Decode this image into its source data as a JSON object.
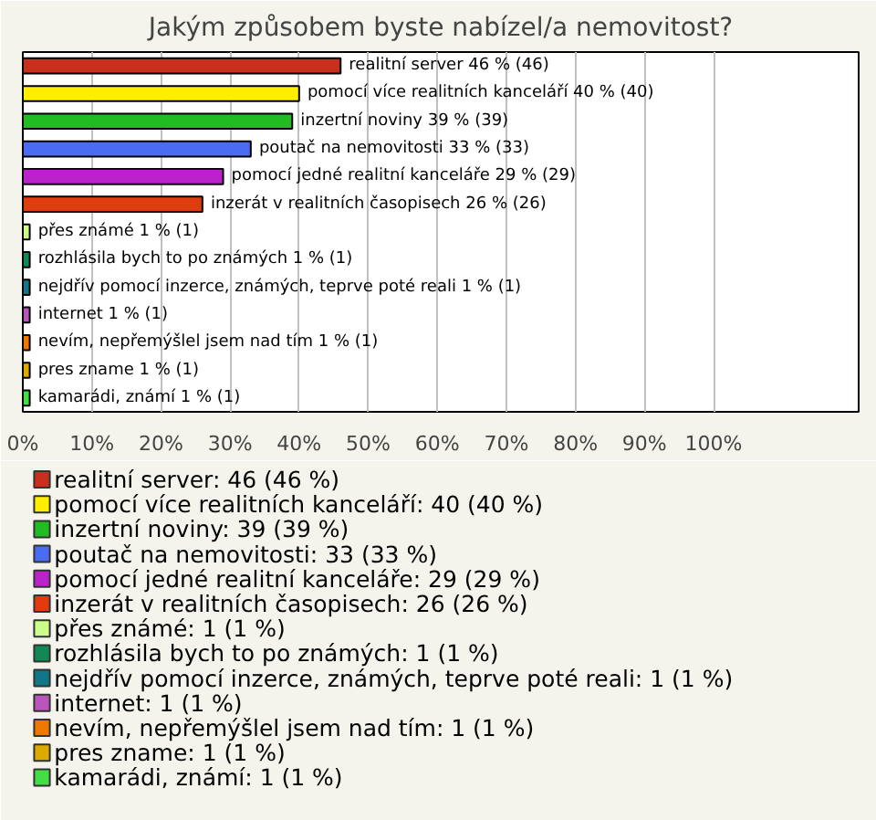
{
  "chart_data": {
    "type": "bar",
    "orientation": "horizontal",
    "stacked": true,
    "title": "Jakým způsobem byste nabízel/a nemovitost?",
    "categories": [
      null,
      null,
      null,
      null,
      null,
      null,
      null,
      null,
      null,
      null,
      null,
      null,
      null
    ],
    "series": [
      {
        "name": "realitní server: 46 (46 %)",
        "color": "#c8301e",
        "values": [
          46,
          null,
          null,
          null,
          null,
          null,
          null,
          null,
          null,
          null,
          null,
          null,
          null
        ],
        "value_labels": [
          "realitní server 46 % (46)",
          null,
          null,
          null,
          null,
          null,
          null,
          null,
          null,
          null,
          null,
          null,
          null
        ]
      },
      {
        "name": "pomocí více realitních kanceláří: 40 (40 %)",
        "color": "#ffee00",
        "values": [
          null,
          40,
          null,
          null,
          null,
          null,
          null,
          null,
          null,
          null,
          null,
          null,
          null
        ],
        "value_labels": [
          null,
          "pomocí více realitních kanceláří 40 % (40)",
          null,
          null,
          null,
          null,
          null,
          null,
          null,
          null,
          null,
          null,
          null
        ]
      },
      {
        "name": "inzertní noviny: 39 (39 %)",
        "color": "#22bb22",
        "values": [
          null,
          null,
          39,
          null,
          null,
          null,
          null,
          null,
          null,
          null,
          null,
          null,
          null
        ],
        "value_labels": [
          null,
          null,
          "inzertní noviny 39 % (39)",
          null,
          null,
          null,
          null,
          null,
          null,
          null,
          null,
          null,
          null
        ]
      },
      {
        "name": "poutač na nemovitosti: 33 (33 %)",
        "color": "#4a6cf0",
        "values": [
          null,
          null,
          null,
          33,
          null,
          null,
          null,
          null,
          null,
          null,
          null,
          null,
          null
        ],
        "value_labels": [
          null,
          null,
          null,
          "poutač na nemovitosti 33 % (33)",
          null,
          null,
          null,
          null,
          null,
          null,
          null,
          null,
          null
        ]
      },
      {
        "name": "pomocí jedné realitní kanceláře: 29 (29 %)",
        "color": "#bb22cc",
        "values": [
          null,
          null,
          null,
          null,
          29,
          null,
          null,
          null,
          null,
          null,
          null,
          null,
          null
        ],
        "value_labels": [
          null,
          null,
          null,
          null,
          "pomocí jedné realitní kanceláře 29 % (29)",
          null,
          null,
          null,
          null,
          null,
          null,
          null,
          null
        ]
      },
      {
        "name": "inzerát v realitních časopisech: 26 (26 %)",
        "color": "#e03c10",
        "values": [
          null,
          null,
          null,
          null,
          null,
          26,
          null,
          null,
          null,
          null,
          null,
          null,
          null
        ],
        "value_labels": [
          null,
          null,
          null,
          null,
          null,
          "inzerát v realitních časopisech 26 % (26)",
          null,
          null,
          null,
          null,
          null,
          null,
          null
        ]
      },
      {
        "name": "přes známé: 1 (1 %)",
        "color": "#ccff88",
        "values": [
          null,
          null,
          null,
          null,
          null,
          null,
          1,
          null,
          null,
          null,
          null,
          null,
          null
        ],
        "value_labels": [
          null,
          null,
          null,
          null,
          null,
          null,
          "přes známé 1 % (1)",
          null,
          null,
          null,
          null,
          null,
          null
        ]
      },
      {
        "name": "rozhlásila bych to po známých: 1 (1 %)",
        "color": "#118855",
        "values": [
          null,
          null,
          null,
          null,
          null,
          null,
          null,
          1,
          null,
          null,
          null,
          null,
          null
        ],
        "value_labels": [
          null,
          null,
          null,
          null,
          null,
          null,
          null,
          "rozhlásila bych to po známých 1 % (1)",
          null,
          null,
          null,
          null,
          null
        ]
      },
      {
        "name": "nejdřív pomocí inzerce, známých, teprve poté reali: 1 (1 %)",
        "color": "#117788",
        "values": [
          null,
          null,
          null,
          null,
          null,
          null,
          null,
          null,
          1,
          null,
          null,
          null,
          null
        ],
        "value_labels": [
          null,
          null,
          null,
          null,
          null,
          null,
          null,
          null,
          "nejdřív pomocí inzerce, známých, teprve poté reali 1 % (1)",
          null,
          null,
          null,
          null
        ]
      },
      {
        "name": "internet: 1 (1 %)",
        "color": "#bb55bb",
        "values": [
          null,
          null,
          null,
          null,
          null,
          null,
          null,
          null,
          null,
          1,
          null,
          null,
          null
        ],
        "value_labels": [
          null,
          null,
          null,
          null,
          null,
          null,
          null,
          null,
          null,
          "internet 1 % (1)",
          null,
          null,
          null
        ]
      },
      {
        "name": "nevím, nepřemýšlel jsem nad tím: 1 (1 %)",
        "color": "#ee7700",
        "values": [
          null,
          null,
          null,
          null,
          null,
          null,
          null,
          null,
          null,
          null,
          1,
          null,
          null
        ],
        "value_labels": [
          null,
          null,
          null,
          null,
          null,
          null,
          null,
          null,
          null,
          null,
          "nevím, nepřemýšlel jsem nad tím 1 % (1)",
          null,
          null
        ]
      },
      {
        "name": "pres zname: 1 (1 %)",
        "color": "#ddaa00",
        "values": [
          null,
          null,
          null,
          null,
          null,
          null,
          null,
          null,
          null,
          null,
          null,
          1,
          null
        ],
        "value_labels": [
          null,
          null,
          null,
          null,
          null,
          null,
          null,
          null,
          null,
          null,
          null,
          "pres zname 1 % (1)",
          null
        ]
      },
      {
        "name": "kamarádi, známí: 1 (1 %)",
        "color": "#44dd44",
        "values": [
          null,
          null,
          null,
          null,
          null,
          null,
          null,
          null,
          null,
          null,
          null,
          null,
          1
        ],
        "value_labels": [
          null,
          null,
          null,
          null,
          null,
          null,
          null,
          null,
          null,
          null,
          null,
          null,
          "kamarádi, známí 1 % (1)"
        ]
      }
    ],
    "xlim": [
      0,
      121
    ],
    "xticks": [
      {
        "value": 0,
        "label": "0%"
      },
      {
        "value": 10,
        "label": "10%"
      },
      {
        "value": 20,
        "label": "20%"
      },
      {
        "value": 30,
        "label": "30%"
      },
      {
        "value": 40,
        "label": "40%"
      },
      {
        "value": 50,
        "label": "50%"
      },
      {
        "value": 60,
        "label": "60%"
      },
      {
        "value": 70,
        "label": "70%"
      },
      {
        "value": 80,
        "label": "80%"
      },
      {
        "value": 90,
        "label": "90%"
      },
      {
        "value": 100,
        "label": "100%"
      }
    ],
    "grid": "x",
    "legend": "bottom"
  }
}
